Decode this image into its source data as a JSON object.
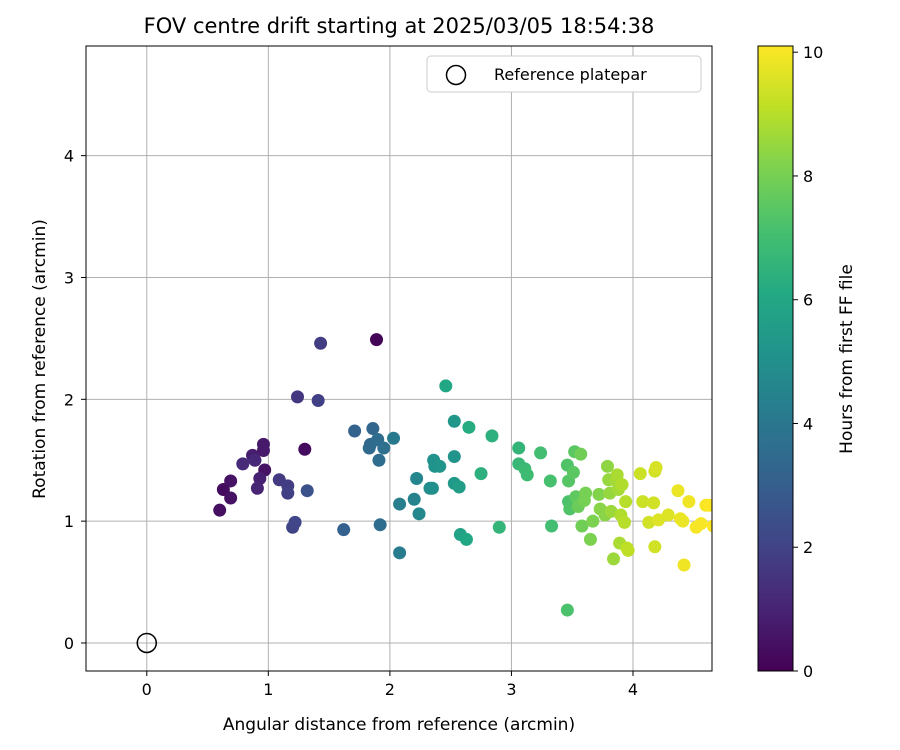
{
  "chart_data": {
    "type": "scatter",
    "title": "FOV centre drift starting at 2025/03/05 18:54:38",
    "xlabel": "Angular distance from reference (arcmin)",
    "ylabel": "Rotation from reference (arcmin)",
    "xlim": [
      -0.5,
      4.65
    ],
    "ylim": [
      -0.23,
      4.9
    ],
    "xticks": [
      0,
      1,
      2,
      3,
      4
    ],
    "yticks": [
      0,
      1,
      2,
      3,
      4
    ],
    "grid": true,
    "legend": {
      "placement": "top-right",
      "entries": [
        {
          "label": "Reference platepar",
          "marker": "open-circle",
          "x": 0,
          "y": 0
        }
      ]
    },
    "colorbar": {
      "label": "Hours from first FF file",
      "range": [
        0,
        10.1
      ],
      "ticks": [
        0,
        2,
        4,
        6,
        8,
        10
      ],
      "colormap": "viridis"
    },
    "points": [
      {
        "x": 1.89,
        "y": 2.49,
        "h": 0.1
      },
      {
        "x": 1.3,
        "y": 1.59,
        "h": 0.3
      },
      {
        "x": 0.6,
        "y": 1.09,
        "h": 0.4
      },
      {
        "x": 0.63,
        "y": 1.26,
        "h": 0.3
      },
      {
        "x": 0.69,
        "y": 1.33,
        "h": 0.5
      },
      {
        "x": 0.69,
        "y": 1.19,
        "h": 0.5
      },
      {
        "x": 0.97,
        "y": 1.42,
        "h": 0.5
      },
      {
        "x": 0.96,
        "y": 1.63,
        "h": 0.7
      },
      {
        "x": 0.96,
        "y": 1.58,
        "h": 0.7
      },
      {
        "x": 0.87,
        "y": 1.54,
        "h": 0.8
      },
      {
        "x": 0.93,
        "y": 1.35,
        "h": 0.9
      },
      {
        "x": 0.91,
        "y": 1.27,
        "h": 1.0
      },
      {
        "x": 0.89,
        "y": 1.5,
        "h": 1.1
      },
      {
        "x": 0.79,
        "y": 1.47,
        "h": 1.2
      },
      {
        "x": 1.09,
        "y": 1.34,
        "h": 1.7
      },
      {
        "x": 1.16,
        "y": 1.29,
        "h": 1.8
      },
      {
        "x": 1.16,
        "y": 1.23,
        "h": 1.9
      },
      {
        "x": 1.2,
        "y": 0.95,
        "h": 2.0
      },
      {
        "x": 1.22,
        "y": 0.99,
        "h": 2.1
      },
      {
        "x": 1.24,
        "y": 2.02,
        "h": 1.6
      },
      {
        "x": 1.43,
        "y": 2.46,
        "h": 1.8
      },
      {
        "x": 1.41,
        "y": 1.99,
        "h": 1.9
      },
      {
        "x": 1.32,
        "y": 1.25,
        "h": 2.5
      },
      {
        "x": 1.62,
        "y": 0.93,
        "h": 3.1
      },
      {
        "x": 1.71,
        "y": 1.74,
        "h": 3.2
      },
      {
        "x": 1.86,
        "y": 1.76,
        "h": 3.3
      },
      {
        "x": 1.84,
        "y": 1.63,
        "h": 3.4
      },
      {
        "x": 1.83,
        "y": 1.6,
        "h": 3.5
      },
      {
        "x": 1.9,
        "y": 1.67,
        "h": 3.6
      },
      {
        "x": 1.95,
        "y": 1.6,
        "h": 3.7
      },
      {
        "x": 1.91,
        "y": 1.5,
        "h": 3.6
      },
      {
        "x": 1.92,
        "y": 0.97,
        "h": 3.6
      },
      {
        "x": 2.03,
        "y": 1.68,
        "h": 4.1
      },
      {
        "x": 2.08,
        "y": 0.74,
        "h": 4.2
      },
      {
        "x": 2.08,
        "y": 1.14,
        "h": 4.3
      },
      {
        "x": 2.2,
        "y": 1.18,
        "h": 4.5
      },
      {
        "x": 2.22,
        "y": 1.35,
        "h": 4.6
      },
      {
        "x": 2.24,
        "y": 1.06,
        "h": 4.7
      },
      {
        "x": 2.33,
        "y": 1.27,
        "h": 4.9
      },
      {
        "x": 2.35,
        "y": 1.27,
        "h": 5.0
      },
      {
        "x": 2.36,
        "y": 1.5,
        "h": 5.1
      },
      {
        "x": 2.37,
        "y": 1.45,
        "h": 5.1
      },
      {
        "x": 2.41,
        "y": 1.45,
        "h": 5.2
      },
      {
        "x": 2.53,
        "y": 1.82,
        "h": 5.3
      },
      {
        "x": 2.53,
        "y": 1.53,
        "h": 5.2
      },
      {
        "x": 2.53,
        "y": 1.31,
        "h": 5.4
      },
      {
        "x": 2.57,
        "y": 1.28,
        "h": 5.6
      },
      {
        "x": 2.58,
        "y": 0.89,
        "h": 5.8
      },
      {
        "x": 2.63,
        "y": 0.85,
        "h": 6.0
      },
      {
        "x": 2.46,
        "y": 2.11,
        "h": 6.0
      },
      {
        "x": 2.65,
        "y": 1.77,
        "h": 6.2
      },
      {
        "x": 2.75,
        "y": 1.39,
        "h": 6.4
      },
      {
        "x": 2.84,
        "y": 1.7,
        "h": 6.4
      },
      {
        "x": 2.9,
        "y": 0.95,
        "h": 6.6
      },
      {
        "x": 3.06,
        "y": 1.6,
        "h": 6.6
      },
      {
        "x": 3.06,
        "y": 1.47,
        "h": 6.7
      },
      {
        "x": 3.11,
        "y": 1.43,
        "h": 6.8
      },
      {
        "x": 3.13,
        "y": 1.38,
        "h": 6.9
      },
      {
        "x": 3.24,
        "y": 1.56,
        "h": 7.0
      },
      {
        "x": 3.32,
        "y": 1.33,
        "h": 7.1
      },
      {
        "x": 3.33,
        "y": 0.96,
        "h": 7.0
      },
      {
        "x": 3.46,
        "y": 0.27,
        "h": 7.2
      },
      {
        "x": 3.46,
        "y": 1.46,
        "h": 7.3
      },
      {
        "x": 3.47,
        "y": 1.33,
        "h": 7.4
      },
      {
        "x": 3.47,
        "y": 1.16,
        "h": 7.2
      },
      {
        "x": 3.48,
        "y": 1.1,
        "h": 7.3
      },
      {
        "x": 3.51,
        "y": 1.4,
        "h": 7.5
      },
      {
        "x": 3.52,
        "y": 1.57,
        "h": 7.5
      },
      {
        "x": 3.53,
        "y": 1.2,
        "h": 7.6
      },
      {
        "x": 3.55,
        "y": 1.12,
        "h": 7.8
      },
      {
        "x": 3.57,
        "y": 1.55,
        "h": 7.9
      },
      {
        "x": 3.58,
        "y": 0.96,
        "h": 7.9
      },
      {
        "x": 3.6,
        "y": 1.17,
        "h": 8.0
      },
      {
        "x": 3.61,
        "y": 1.23,
        "h": 8.0
      },
      {
        "x": 3.65,
        "y": 0.85,
        "h": 8.1
      },
      {
        "x": 3.67,
        "y": 1.0,
        "h": 8.1
      },
      {
        "x": 3.72,
        "y": 1.22,
        "h": 8.2
      },
      {
        "x": 3.73,
        "y": 1.1,
        "h": 8.3
      },
      {
        "x": 3.77,
        "y": 1.05,
        "h": 8.3
      },
      {
        "x": 3.79,
        "y": 1.45,
        "h": 8.4
      },
      {
        "x": 3.8,
        "y": 1.34,
        "h": 8.5
      },
      {
        "x": 3.81,
        "y": 1.23,
        "h": 8.5
      },
      {
        "x": 3.82,
        "y": 1.08,
        "h": 8.6
      },
      {
        "x": 3.84,
        "y": 0.69,
        "h": 8.6
      },
      {
        "x": 3.86,
        "y": 1.33,
        "h": 8.7
      },
      {
        "x": 3.87,
        "y": 1.38,
        "h": 8.8
      },
      {
        "x": 3.88,
        "y": 1.26,
        "h": 8.7
      },
      {
        "x": 3.89,
        "y": 0.82,
        "h": 8.8
      },
      {
        "x": 3.9,
        "y": 1.05,
        "h": 8.9
      },
      {
        "x": 3.91,
        "y": 1.3,
        "h": 8.9
      },
      {
        "x": 3.93,
        "y": 0.99,
        "h": 9.0
      },
      {
        "x": 3.94,
        "y": 1.16,
        "h": 9.0
      },
      {
        "x": 3.95,
        "y": 0.78,
        "h": 9.1
      },
      {
        "x": 3.96,
        "y": 0.76,
        "h": 9.1
      },
      {
        "x": 4.06,
        "y": 1.39,
        "h": 9.3
      },
      {
        "x": 4.08,
        "y": 1.16,
        "h": 9.3
      },
      {
        "x": 4.13,
        "y": 0.99,
        "h": 9.4
      },
      {
        "x": 4.17,
        "y": 1.15,
        "h": 9.4
      },
      {
        "x": 4.18,
        "y": 1.41,
        "h": 9.4
      },
      {
        "x": 4.19,
        "y": 1.44,
        "h": 9.5
      },
      {
        "x": 4.18,
        "y": 0.79,
        "h": 9.4
      },
      {
        "x": 4.21,
        "y": 1.01,
        "h": 9.6
      },
      {
        "x": 4.29,
        "y": 1.05,
        "h": 9.6
      },
      {
        "x": 4.37,
        "y": 1.25,
        "h": 9.8
      },
      {
        "x": 4.39,
        "y": 1.02,
        "h": 9.8
      },
      {
        "x": 4.41,
        "y": 1.0,
        "h": 9.8
      },
      {
        "x": 4.42,
        "y": 0.64,
        "h": 9.9
      },
      {
        "x": 4.46,
        "y": 1.16,
        "h": 9.9
      },
      {
        "x": 4.52,
        "y": 0.95,
        "h": 10.0
      },
      {
        "x": 4.56,
        "y": 0.98,
        "h": 10.0
      },
      {
        "x": 4.6,
        "y": 1.13,
        "h": 10.0
      },
      {
        "x": 4.63,
        "y": 1.13,
        "h": 10.1
      },
      {
        "x": 4.66,
        "y": 0.96,
        "h": 10.1
      }
    ]
  }
}
